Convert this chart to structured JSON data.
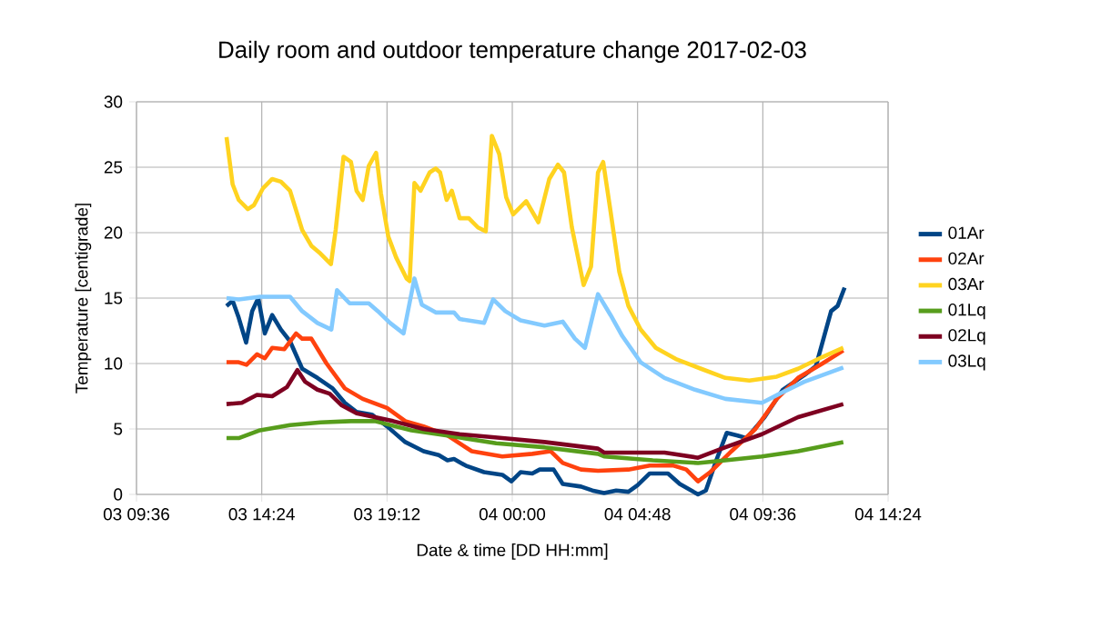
{
  "chart_data": {
    "type": "line",
    "title": "Daily room and outdoor temperature change 2017-02-03",
    "xlabel": "Date & time [DD HH:mm]",
    "ylabel": "Temperature [centigrade]",
    "xlim": [
      "2017-02-03T09:36",
      "2017-02-04T14:24"
    ],
    "xticks": [
      {
        "value": "2017-02-03T09:36",
        "label": "03 09:36"
      },
      {
        "value": "2017-02-03T14:24",
        "label": "03 14:24"
      },
      {
        "value": "2017-02-03T19:12",
        "label": "03 19:12"
      },
      {
        "value": "2017-02-04T00:00",
        "label": "04 00:00"
      },
      {
        "value": "2017-02-04T04:48",
        "label": "04 04:48"
      },
      {
        "value": "2017-02-04T09:36",
        "label": "04 09:36"
      },
      {
        "value": "2017-02-04T14:24",
        "label": "04 14:24"
      }
    ],
    "ylim": [
      0,
      30
    ],
    "yticks": [
      0,
      5,
      10,
      15,
      20,
      25,
      30
    ],
    "grid": true,
    "legend": "right",
    "marker": "none",
    "line_style": "solid",
    "series": [
      {
        "name": "01Ar",
        "color": "#004586",
        "x": [
          "2017-02-03T13:03",
          "2017-02-03T13:17",
          "2017-02-03T13:31",
          "2017-02-03T13:48",
          "2017-02-03T14:02",
          "2017-02-03T14:16",
          "2017-02-03T14:31",
          "2017-02-03T14:48",
          "2017-02-03T15:08",
          "2017-02-03T15:29",
          "2017-02-03T15:57",
          "2017-02-03T16:32",
          "2017-02-03T17:07",
          "2017-02-03T17:35",
          "2017-02-03T18:02",
          "2017-02-03T18:37",
          "2017-02-03T19:12",
          "2017-02-03T19:54",
          "2017-02-03T20:36",
          "2017-02-03T21:11",
          "2017-02-03T21:31",
          "2017-02-03T21:46",
          "2017-02-03T22:13",
          "2017-02-03T22:55",
          "2017-02-03T23:37",
          "2017-02-03T23:58",
          "2017-02-04T00:19",
          "2017-02-04T00:46",
          "2017-02-04T01:03",
          "2017-02-04T01:35",
          "2017-02-04T01:56",
          "2017-02-04T02:38",
          "2017-02-04T03:04",
          "2017-02-04T03:31",
          "2017-02-04T03:59",
          "2017-02-04T04:27",
          "2017-02-04T04:48",
          "2017-02-04T05:16",
          "2017-02-04T05:58",
          "2017-02-04T06:25",
          "2017-02-04T07:07",
          "2017-02-04T07:25",
          "2017-02-04T07:49",
          "2017-02-04T08:13",
          "2017-02-04T08:38",
          "2017-02-04T08:59",
          "2017-02-04T09:40",
          "2017-02-04T10:22",
          "2017-02-04T11:11",
          "2017-02-04T11:38",
          "2017-02-04T12:13",
          "2017-02-04T12:28",
          "2017-02-04T12:44"
        ],
        "values": [
          14.4,
          14.8,
          13.5,
          11.6,
          14.0,
          15.0,
          12.3,
          13.7,
          12.6,
          11.7,
          9.6,
          8.9,
          8.1,
          7.0,
          6.3,
          6.1,
          5.2,
          4.0,
          3.3,
          3.0,
          2.6,
          2.7,
          2.2,
          1.7,
          1.5,
          1.0,
          1.7,
          1.6,
          1.9,
          1.9,
          0.8,
          0.6,
          0.3,
          0.1,
          0.3,
          0.2,
          0.7,
          1.6,
          1.6,
          0.8,
          0.0,
          0.3,
          2.6,
          4.7,
          4.5,
          4.3,
          5.9,
          8.0,
          9.1,
          9.8,
          14.0,
          14.4,
          15.8
        ]
      },
      {
        "name": "02Ar",
        "color": "#ff420e",
        "x": [
          "2017-02-03T13:03",
          "2017-02-03T13:31",
          "2017-02-03T13:49",
          "2017-02-03T14:13",
          "2017-02-03T14:31",
          "2017-02-03T14:48",
          "2017-02-03T15:16",
          "2017-02-03T15:43",
          "2017-02-03T15:57",
          "2017-02-03T16:18",
          "2017-02-03T16:53",
          "2017-02-03T17:35",
          "2017-02-03T18:16",
          "2017-02-03T19:12",
          "2017-02-03T19:54",
          "2017-02-03T20:36",
          "2017-02-03T21:31",
          "2017-02-03T22:27",
          "2017-02-03T23:37",
          "2017-02-04T00:46",
          "2017-02-04T01:28",
          "2017-02-04T01:56",
          "2017-02-04T02:38",
          "2017-02-04T03:17",
          "2017-02-04T04:27",
          "2017-02-04T05:16",
          "2017-02-04T06:11",
          "2017-02-04T06:40",
          "2017-02-04T07:07",
          "2017-02-04T07:35",
          "2017-02-04T08:24",
          "2017-02-04T09:19",
          "2017-02-04T10:08",
          "2017-02-04T10:57",
          "2017-02-04T11:53",
          "2017-02-04T12:41"
        ],
        "values": [
          10.1,
          10.1,
          9.9,
          10.7,
          10.4,
          11.2,
          11.1,
          12.3,
          11.9,
          11.9,
          10.0,
          8.1,
          7.3,
          6.6,
          5.6,
          5.2,
          4.5,
          3.3,
          2.9,
          3.1,
          3.3,
          2.4,
          1.9,
          1.8,
          1.9,
          2.2,
          2.2,
          1.9,
          1.0,
          1.7,
          3.3,
          5.0,
          7.3,
          8.9,
          10.0,
          11.0
        ]
      },
      {
        "name": "03Ar",
        "color": "#ffd320",
        "x": [
          "2017-02-03T13:03",
          "2017-02-03T13:17",
          "2017-02-03T13:31",
          "2017-02-03T13:52",
          "2017-02-03T14:06",
          "2017-02-03T14:27",
          "2017-02-03T14:48",
          "2017-02-03T15:08",
          "2017-02-03T15:29",
          "2017-02-03T15:57",
          "2017-02-03T16:18",
          "2017-02-03T16:39",
          "2017-02-03T17:03",
          "2017-02-03T17:14",
          "2017-02-03T17:32",
          "2017-02-03T17:49",
          "2017-02-03T18:02",
          "2017-02-03T18:16",
          "2017-02-03T18:30",
          "2017-02-03T18:47",
          "2017-02-03T18:58",
          "2017-02-03T19:15",
          "2017-02-03T19:33",
          "2017-02-03T19:57",
          "2017-02-03T20:04",
          "2017-02-03T20:15",
          "2017-02-03T20:29",
          "2017-02-03T20:50",
          "2017-02-03T21:04",
          "2017-02-03T21:14",
          "2017-02-03T21:29",
          "2017-02-03T21:41",
          "2017-02-03T21:59",
          "2017-02-03T22:20",
          "2017-02-03T22:41",
          "2017-02-03T22:59",
          "2017-02-03T23:13",
          "2017-02-03T23:30",
          "2017-02-03T23:46",
          "2017-02-04T00:02",
          "2017-02-04T00:32",
          "2017-02-04T01:00",
          "2017-02-04T01:25",
          "2017-02-04T01:45",
          "2017-02-04T01:59",
          "2017-02-04T02:17",
          "2017-02-04T02:44",
          "2017-02-04T03:01",
          "2017-02-04T03:17",
          "2017-02-04T03:29",
          "2017-02-04T03:46",
          "2017-02-04T04:06",
          "2017-02-04T04:27",
          "2017-02-04T04:55",
          "2017-02-04T05:30",
          "2017-02-04T06:19",
          "2017-02-04T07:14",
          "2017-02-04T08:10",
          "2017-02-04T09:05",
          "2017-02-04T10:08",
          "2017-02-04T10:57",
          "2017-02-04T11:53",
          "2017-02-04T12:41"
        ],
        "values": [
          27.3,
          23.7,
          22.5,
          21.8,
          22.1,
          23.4,
          24.1,
          23.9,
          23.2,
          20.2,
          19.0,
          18.4,
          17.6,
          20.2,
          25.8,
          25.4,
          23.2,
          22.5,
          25.1,
          26.1,
          23.0,
          19.7,
          18.1,
          16.5,
          16.3,
          23.8,
          23.2,
          24.6,
          24.9,
          24.6,
          22.5,
          23.2,
          21.1,
          21.1,
          20.4,
          20.1,
          27.4,
          26.0,
          22.7,
          21.4,
          22.4,
          20.8,
          24.1,
          25.2,
          24.6,
          20.4,
          16.0,
          17.4,
          24.6,
          25.4,
          21.6,
          17.0,
          14.4,
          12.6,
          11.2,
          10.3,
          9.6,
          8.9,
          8.7,
          9.0,
          9.6,
          10.5,
          11.2
        ]
      },
      {
        "name": "01Lq",
        "color": "#579d1c",
        "x": [
          "2017-02-03T13:03",
          "2017-02-03T13:31",
          "2017-02-03T14:20",
          "2017-02-03T15:29",
          "2017-02-03T16:39",
          "2017-02-03T17:49",
          "2017-02-03T18:44",
          "2017-02-03T20:08",
          "2017-02-03T21:31",
          "2017-02-03T23:23",
          "2017-02-04T01:14",
          "2017-02-04T03:17",
          "2017-02-04T03:31",
          "2017-02-04T05:23",
          "2017-02-04T07:07",
          "2017-02-04T08:10",
          "2017-02-04T09:34",
          "2017-02-04T10:57",
          "2017-02-04T12:41"
        ],
        "values": [
          4.3,
          4.3,
          4.9,
          5.3,
          5.5,
          5.6,
          5.6,
          4.9,
          4.5,
          3.9,
          3.6,
          3.1,
          2.9,
          2.6,
          2.4,
          2.6,
          2.9,
          3.3,
          4.0
        ]
      },
      {
        "name": "02Lq",
        "color": "#7e0021",
        "x": [
          "2017-02-03T13:03",
          "2017-02-03T13:38",
          "2017-02-03T14:13",
          "2017-02-03T14:48",
          "2017-02-03T15:22",
          "2017-02-03T15:46",
          "2017-02-03T16:04",
          "2017-02-03T16:32",
          "2017-02-03T17:00",
          "2017-02-03T17:28",
          "2017-02-03T18:02",
          "2017-02-03T18:44",
          "2017-02-03T19:26",
          "2017-02-03T20:36",
          "2017-02-03T21:59",
          "2017-02-03T23:37",
          "2017-02-04T01:14",
          "2017-02-04T03:17",
          "2017-02-04T03:31",
          "2017-02-04T05:50",
          "2017-02-04T07:07",
          "2017-02-04T08:10",
          "2017-02-04T09:34",
          "2017-02-04T10:57",
          "2017-02-04T12:41"
        ],
        "values": [
          6.9,
          7.0,
          7.6,
          7.5,
          8.2,
          9.5,
          8.6,
          8.0,
          7.7,
          6.8,
          6.2,
          5.9,
          5.6,
          5.0,
          4.6,
          4.3,
          4.0,
          3.5,
          3.2,
          3.2,
          2.8,
          3.6,
          4.6,
          5.9,
          6.9
        ]
      },
      {
        "name": "03Lq",
        "color": "#83caff",
        "x": [
          "2017-02-03T13:03",
          "2017-02-03T13:31",
          "2017-02-03T14:20",
          "2017-02-03T15:29",
          "2017-02-03T15:57",
          "2017-02-03T16:32",
          "2017-02-03T17:04",
          "2017-02-03T17:17",
          "2017-02-03T17:46",
          "2017-02-03T18:30",
          "2017-02-03T18:51",
          "2017-02-03T19:19",
          "2017-02-03T19:50",
          "2017-02-03T20:15",
          "2017-02-03T20:32",
          "2017-02-03T21:04",
          "2017-02-03T21:46",
          "2017-02-03T21:59",
          "2017-02-03T22:55",
          "2017-02-03T23:16",
          "2017-02-03T23:44",
          "2017-02-04T00:19",
          "2017-02-04T01:14",
          "2017-02-04T01:56",
          "2017-02-04T02:24",
          "2017-02-04T02:47",
          "2017-02-04T03:17",
          "2017-02-04T03:46",
          "2017-02-04T04:13",
          "2017-02-04T04:55",
          "2017-02-04T05:50",
          "2017-02-04T07:00",
          "2017-02-04T08:10",
          "2017-02-04T09:34",
          "2017-02-04T10:15",
          "2017-02-04T11:11",
          "2017-02-04T12:41"
        ],
        "values": [
          15.0,
          14.9,
          15.1,
          15.1,
          14.0,
          13.1,
          12.6,
          15.6,
          14.6,
          14.6,
          14.0,
          13.1,
          12.3,
          16.5,
          14.5,
          13.9,
          13.9,
          13.4,
          13.1,
          14.9,
          14.0,
          13.3,
          12.9,
          13.2,
          11.9,
          11.2,
          15.3,
          13.7,
          12.1,
          10.1,
          8.9,
          8.0,
          7.3,
          7.0,
          7.7,
          8.6,
          9.7
        ]
      }
    ]
  }
}
